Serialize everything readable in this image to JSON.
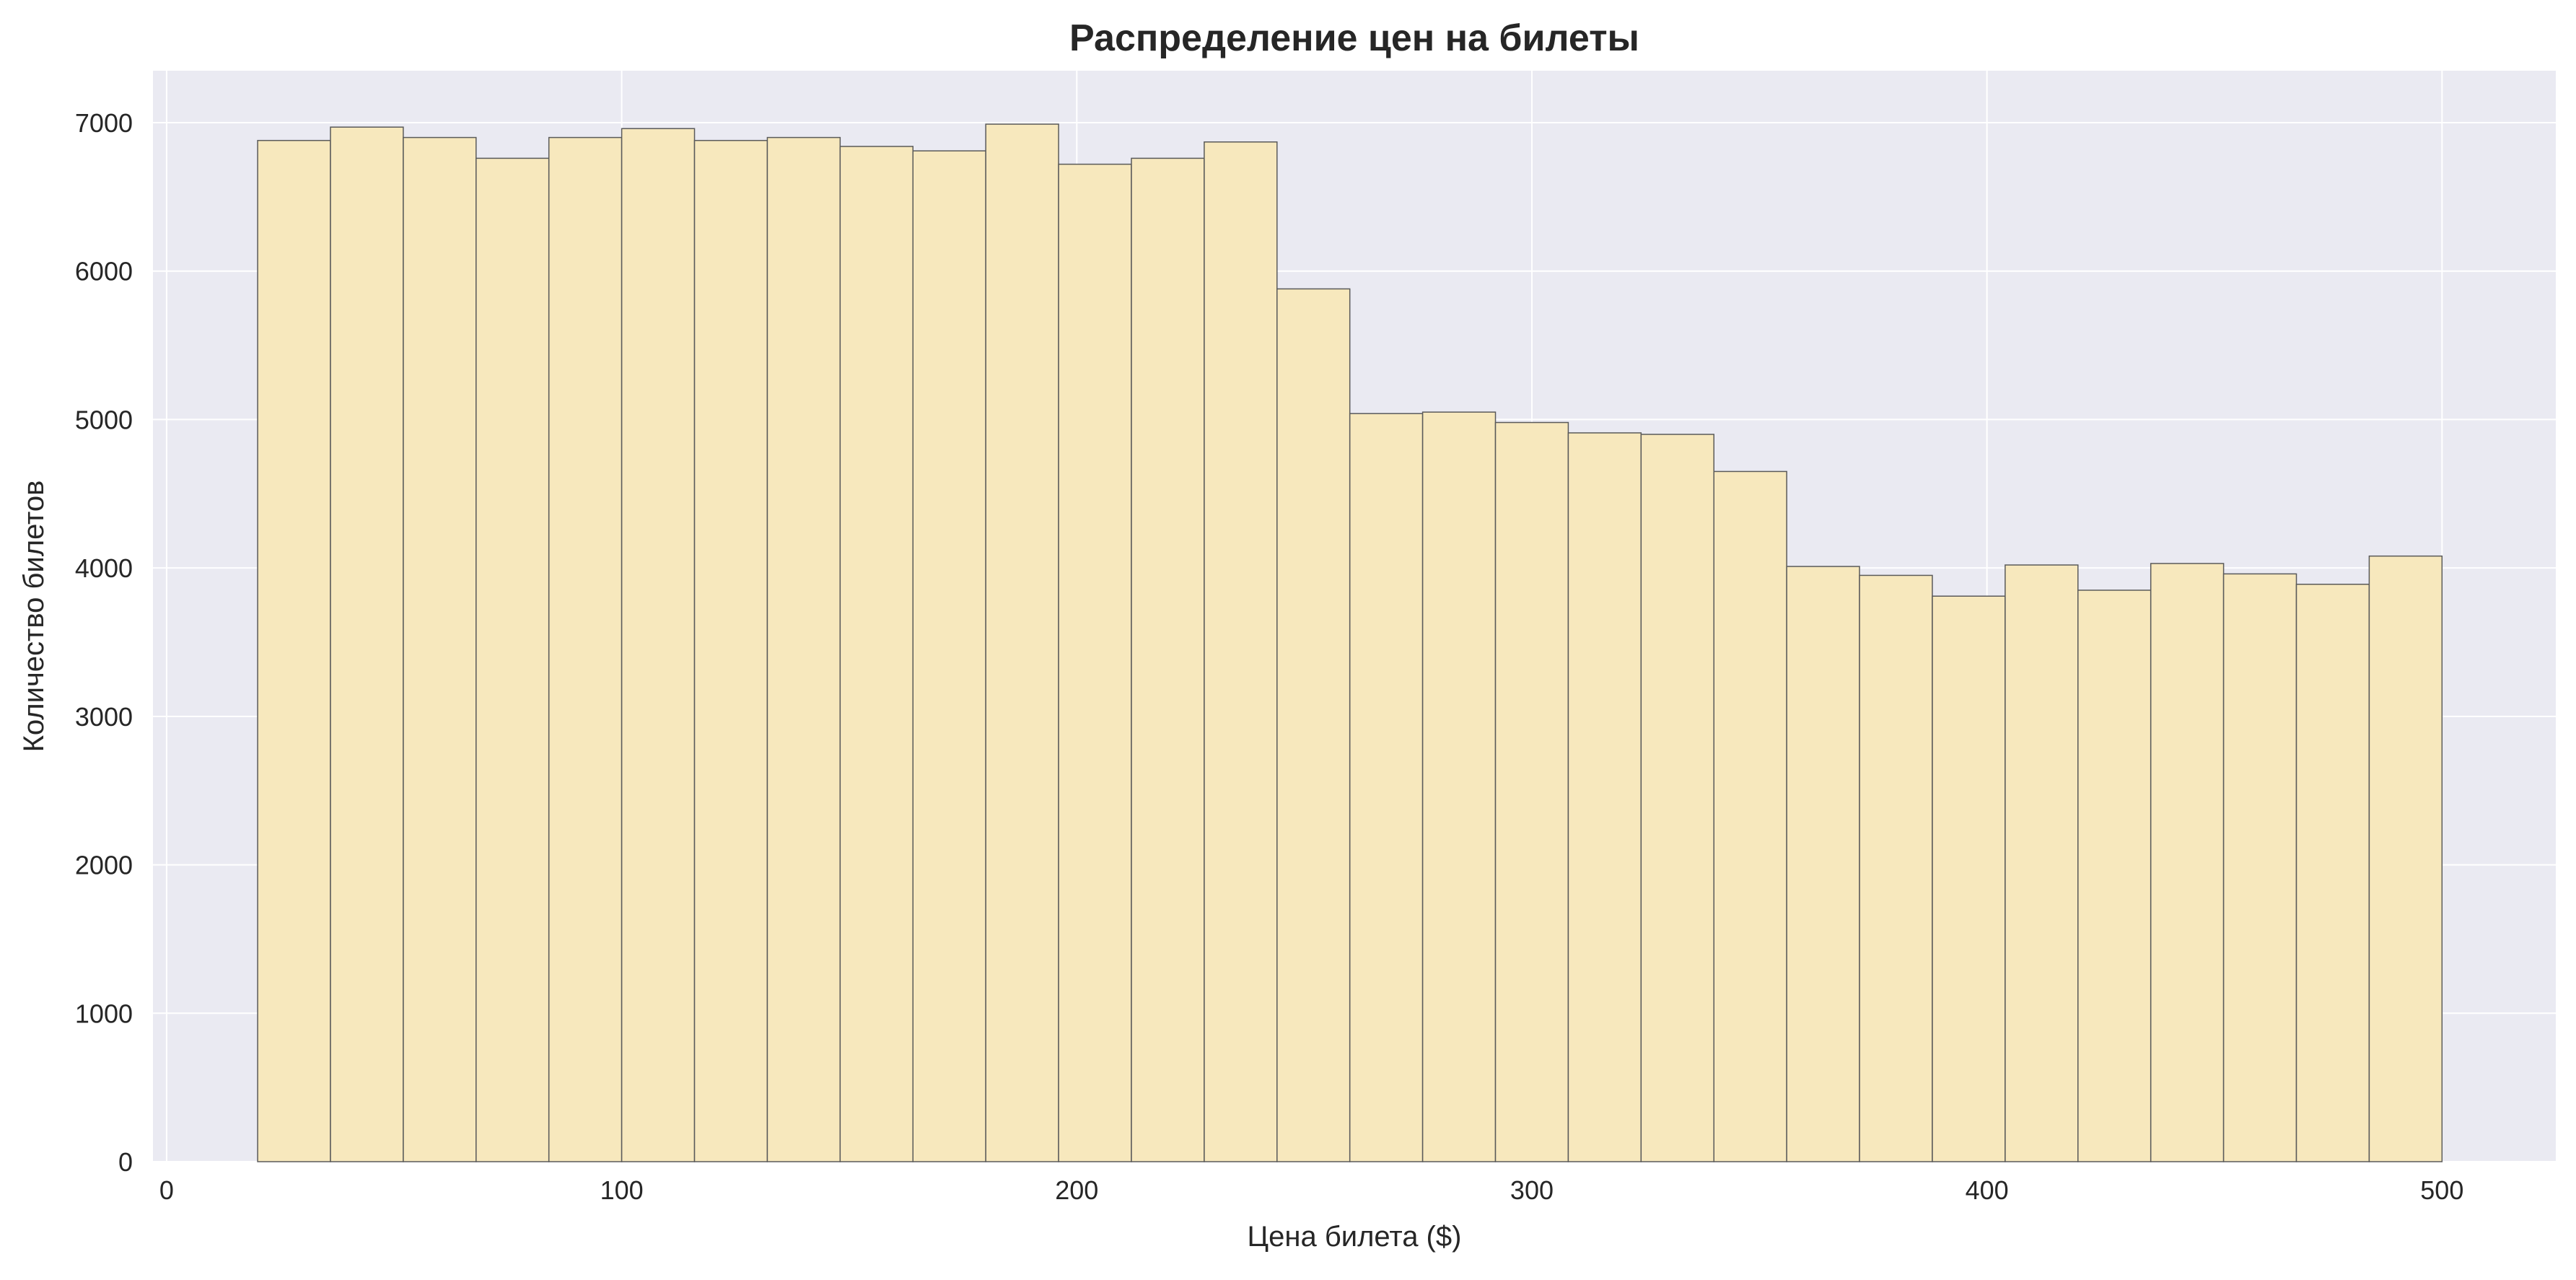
{
  "chart_data": {
    "type": "bar",
    "subtype": "histogram",
    "title": "Распределение цен на билеты",
    "xlabel": "Цена билета ($)",
    "ylabel": "Количество билетов",
    "xlim": [
      -3,
      525
    ],
    "ylim": [
      0,
      7350
    ],
    "x_ticks": [
      0,
      100,
      200,
      300,
      400,
      500
    ],
    "x_tick_labels": [
      "0",
      "100",
      "200",
      "300",
      "400",
      "500"
    ],
    "y_ticks": [
      0,
      1000,
      2000,
      3000,
      4000,
      5000,
      6000,
      7000
    ],
    "y_tick_labels": [
      "0",
      "1000",
      "2000",
      "3000",
      "4000",
      "5000",
      "6000",
      "7000"
    ],
    "grid": true,
    "legend": "none",
    "bin_edges": [
      20,
      36,
      52,
      68,
      84,
      100,
      116,
      132,
      148,
      164,
      180,
      196,
      212,
      228,
      244,
      260,
      276,
      292,
      308,
      324,
      340,
      356,
      372,
      388,
      404,
      420,
      436,
      452,
      468,
      484,
      500
    ],
    "values": [
      6880,
      6970,
      6900,
      6760,
      6900,
      6960,
      6880,
      6900,
      6840,
      6810,
      6990,
      6720,
      6760,
      6870,
      5880,
      5040,
      5050,
      4980,
      4910,
      4900,
      4650,
      4010,
      3950,
      3810,
      4020,
      3850,
      4030,
      3960,
      3890,
      4080
    ],
    "colors": {
      "bar_fill": "#f7e8bd",
      "bar_edge": "#5a5a5a",
      "plot_background": "#eaeaf2",
      "grid": "#ffffff"
    }
  }
}
